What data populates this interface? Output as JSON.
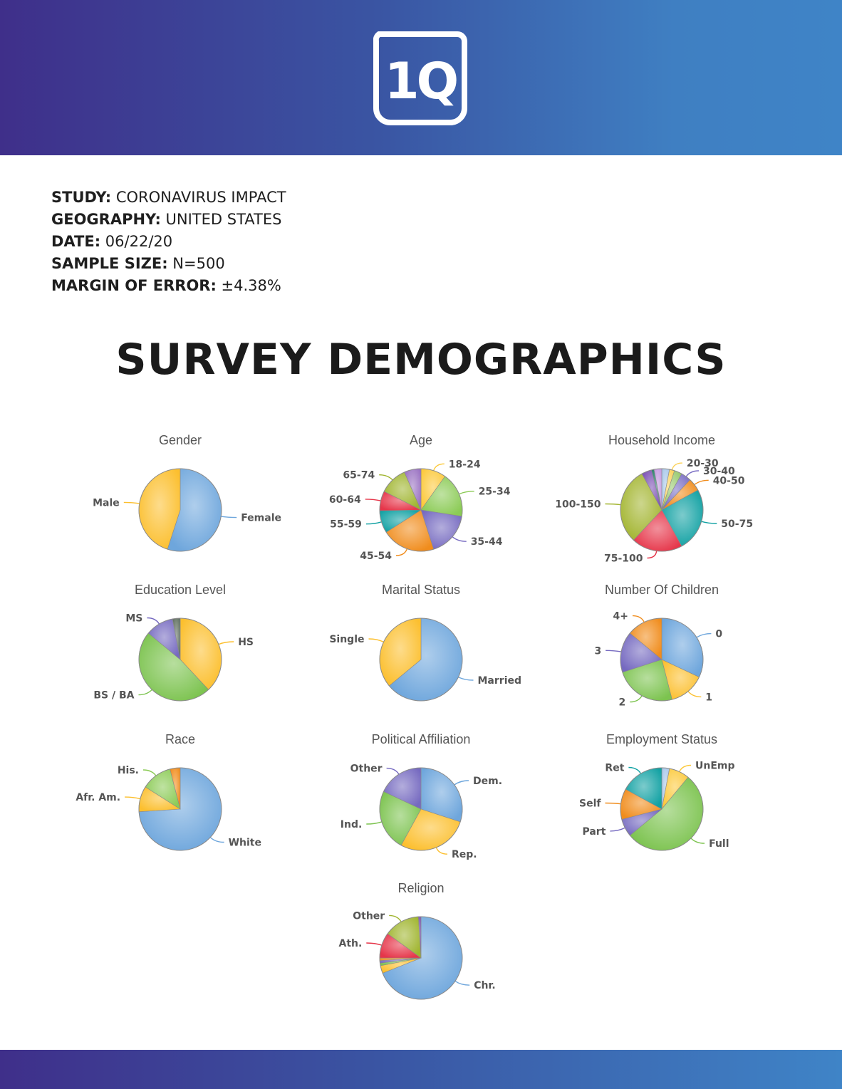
{
  "brand": {
    "logo_text": "1Q"
  },
  "colors": {
    "header_start": "#3f2f8a",
    "header_end": "#3f84c7"
  },
  "meta": [
    {
      "key": "STUDY:",
      "value": " CORONAVIRUS IMPACT"
    },
    {
      "key": "GEOGRAPHY:",
      "value": " UNITED STATES"
    },
    {
      "key": "DATE:",
      "value": " 06/22/20"
    },
    {
      "key": "SAMPLE SIZE:",
      "value": " N=500"
    },
    {
      "key": "MARGIN OF ERROR:",
      "value": " ±4.38%"
    }
  ],
  "page_title": "SURVEY DEMOGRAPHICS",
  "chart_data": [
    {
      "type": "pie",
      "title": "Gender",
      "grid_position": "row1-col1",
      "slices": [
        {
          "label": "Female",
          "value": 55,
          "color": "#6ea6dc"
        },
        {
          "label": "Male",
          "value": 45,
          "color": "#fcbf2e"
        }
      ]
    },
    {
      "type": "pie",
      "title": "Age",
      "grid_position": "row1-col2",
      "slices": [
        {
          "label": "18-24",
          "value": 9,
          "color": "#fcc93b"
        },
        {
          "label": "25-34",
          "value": 16,
          "color": "#8bcb55"
        },
        {
          "label": "35-44",
          "value": 16,
          "color": "#7569c0"
        },
        {
          "label": "45-54",
          "value": 19,
          "color": "#f08c1c"
        },
        {
          "label": "55-59",
          "value": 8,
          "color": "#11a1a3"
        },
        {
          "label": "60-64",
          "value": 7,
          "color": "#e6364a"
        },
        {
          "label": "65-74",
          "value": 10,
          "color": "#9fb42d"
        },
        {
          "label": "",
          "value": 6,
          "color": "#9a72c2"
        }
      ]
    },
    {
      "type": "pie",
      "title": "Household Income",
      "grid_position": "row1-col3",
      "slices": [
        {
          "label": "",
          "value": 3,
          "color": "#a9c8ea"
        },
        {
          "label": "20-30",
          "value": 2,
          "color": "#fcd25a"
        },
        {
          "label": "",
          "value": 3,
          "color": "#97c96c"
        },
        {
          "label": "30-40",
          "value": 4,
          "color": "#7b6fc4"
        },
        {
          "label": "40-50",
          "value": 5,
          "color": "#f08c1c"
        },
        {
          "label": "50-75",
          "value": 25,
          "color": "#11a1a3"
        },
        {
          "label": "75-100",
          "value": 20,
          "color": "#e6364a"
        },
        {
          "label": "100-150",
          "value": 30,
          "color": "#a3b530"
        },
        {
          "label": "",
          "value": 4,
          "color": "#7a4fb3"
        },
        {
          "label": "",
          "value": 1,
          "color": "#27806b"
        },
        {
          "label": "",
          "value": 3,
          "color": "#c49ae0"
        }
      ]
    },
    {
      "type": "pie",
      "title": "Education Level",
      "grid_position": "row2-col1",
      "slices": [
        {
          "label": "HS",
          "value": 38,
          "color": "#fcbf2e"
        },
        {
          "label": "BS / BA",
          "value": 48,
          "color": "#7cc34f"
        },
        {
          "label": "MS",
          "value": 11,
          "color": "#7569c0"
        },
        {
          "label": "",
          "value": 3,
          "color": "#607060"
        }
      ]
    },
    {
      "type": "pie",
      "title": "Marital Status",
      "grid_position": "row2-col2",
      "slices": [
        {
          "label": "Married",
          "value": 64,
          "color": "#6ea6dc"
        },
        {
          "label": "Single",
          "value": 36,
          "color": "#fcbf2e"
        }
      ]
    },
    {
      "type": "pie",
      "title": "Number Of Children",
      "grid_position": "row2-col3",
      "slices": [
        {
          "label": "0",
          "value": 32,
          "color": "#6ea6dc"
        },
        {
          "label": "1",
          "value": 14,
          "color": "#fcbf2e"
        },
        {
          "label": "2",
          "value": 24,
          "color": "#7cc34f"
        },
        {
          "label": "3",
          "value": 16,
          "color": "#7569c0"
        },
        {
          "label": "4+",
          "value": 14,
          "color": "#f08c1c"
        }
      ]
    },
    {
      "type": "pie",
      "title": "Race",
      "grid_position": "row3-col1",
      "slices": [
        {
          "label": "White",
          "value": 74,
          "color": "#6ea6dc"
        },
        {
          "label": "Afr. Am.",
          "value": 10,
          "color": "#fcbf2e"
        },
        {
          "label": "His.",
          "value": 12,
          "color": "#8bcb55"
        },
        {
          "label": "",
          "value": 4,
          "color": "#f08c1c"
        }
      ]
    },
    {
      "type": "pie",
      "title": "Political Affiliation",
      "grid_position": "row3-col2",
      "slices": [
        {
          "label": "Dem.",
          "value": 30,
          "color": "#6ea6dc"
        },
        {
          "label": "Rep.",
          "value": 28,
          "color": "#fcbf2e"
        },
        {
          "label": "Ind.",
          "value": 24,
          "color": "#7cc34f"
        },
        {
          "label": "Other",
          "value": 18,
          "color": "#7569c0"
        }
      ]
    },
    {
      "type": "pie",
      "title": "Employment Status",
      "grid_position": "row3-col3",
      "slices": [
        {
          "label": "",
          "value": 3,
          "color": "#a9c8ea"
        },
        {
          "label": "UnEmp",
          "value": 8,
          "color": "#fcc93b"
        },
        {
          "label": "Full",
          "value": 53,
          "color": "#7cc34f"
        },
        {
          "label": "Part",
          "value": 7,
          "color": "#7569c0"
        },
        {
          "label": "Self",
          "value": 12,
          "color": "#f08c1c"
        },
        {
          "label": "Ret",
          "value": 17,
          "color": "#11a1a3"
        }
      ]
    },
    {
      "type": "pie",
      "title": "Religion",
      "grid_position": "row4-col2",
      "slices": [
        {
          "label": "Chr.",
          "value": 69,
          "color": "#6ea6dc"
        },
        {
          "label": "",
          "value": 3,
          "color": "#fcbf2e"
        },
        {
          "label": "",
          "value": 1,
          "color": "#7cc34f"
        },
        {
          "label": "",
          "value": 1,
          "color": "#7569c0"
        },
        {
          "label": "",
          "value": 1,
          "color": "#f08c1c"
        },
        {
          "label": "Ath.",
          "value": 10,
          "color": "#e6364a"
        },
        {
          "label": "Other",
          "value": 14,
          "color": "#9fb42d"
        },
        {
          "label": "",
          "value": 1,
          "color": "#7a4fb3"
        }
      ]
    }
  ]
}
